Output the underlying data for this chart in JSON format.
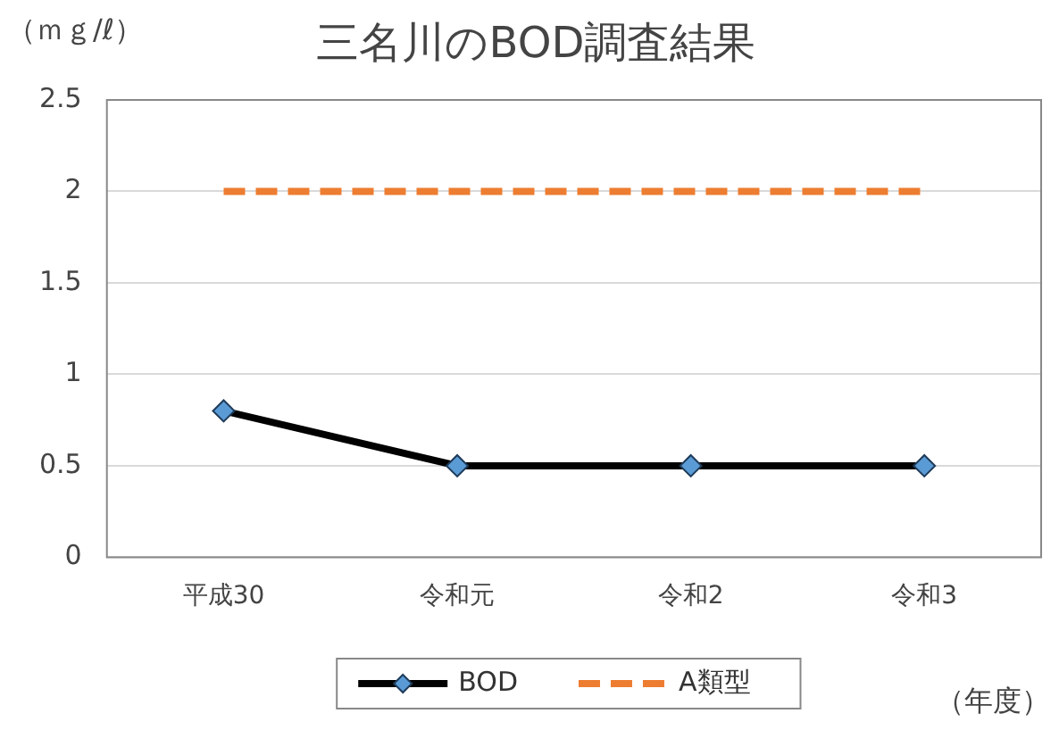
{
  "chart_data": {
    "type": "line",
    "title": "三名川のBOD調査結果",
    "ylabel": "（ｍｇ/ℓ）",
    "xlabel": "（年度）",
    "categories": [
      "平成30",
      "令和元",
      "令和2",
      "令和3"
    ],
    "series": [
      {
        "name": "BOD",
        "color": "#000000",
        "colors": [
          "#5b9bd5",
          "#5b9bd5",
          "#5b9bd5",
          "#5b9bd5"
        ],
        "marker": "diamond",
        "line_style": "solid",
        "values": [
          0.8,
          0.5,
          0.5,
          0.5
        ]
      },
      {
        "name": "A類型",
        "color": "#ed7d31",
        "marker": "none",
        "line_style": "dashed",
        "values": [
          2,
          2,
          2,
          2
        ]
      }
    ],
    "ylim": [
      0,
      2.5
    ],
    "yticks": [
      0,
      0.5,
      1,
      1.5,
      2,
      2.5
    ],
    "grid": "y",
    "legend": "bottom"
  }
}
